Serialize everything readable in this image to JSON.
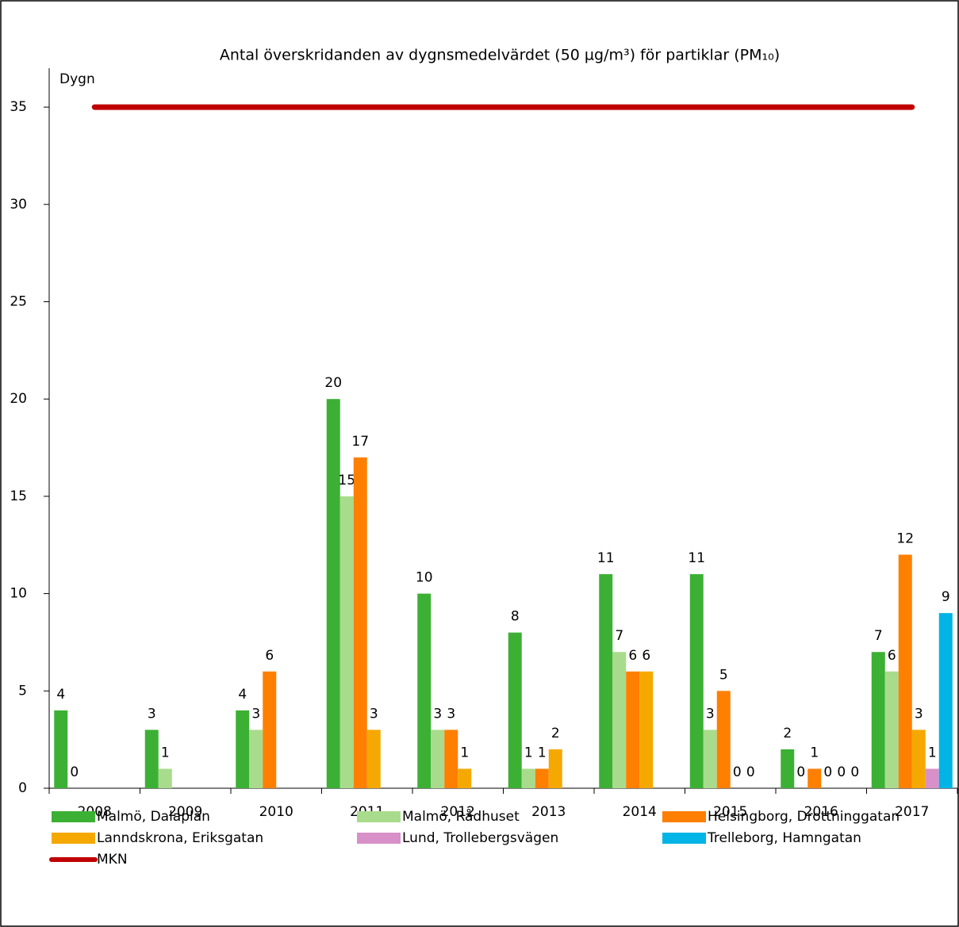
{
  "chart_data": {
    "type": "bar",
    "title": "Antal överskridanden av dygnsmedelvärdet (50 µg/m³) för partiklar (PM₁₀)",
    "y_label": "Dygn",
    "categories": [
      "2008",
      "2009",
      "2010",
      "2011",
      "2012",
      "2013",
      "2014",
      "2015",
      "2016",
      "2017"
    ],
    "series": [
      {
        "name": "Malmö, Dalaplan",
        "color": "#3cb034",
        "values": [
          4,
          3,
          4,
          20,
          10,
          8,
          11,
          11,
          2,
          7
        ]
      },
      {
        "name": "Malmö, Rådhuset",
        "color": "#a8dc8c",
        "values": [
          0,
          1,
          3,
          15,
          3,
          1,
          7,
          3,
          0,
          6
        ]
      },
      {
        "name": "Helsingborg, Drottninggatan",
        "color": "#ff7f00",
        "values": [
          null,
          null,
          6,
          17,
          3,
          1,
          6,
          5,
          1,
          12
        ]
      },
      {
        "name": "Lanndskrona, Eriksgatan",
        "color": "#f5a800",
        "values": [
          null,
          null,
          null,
          3,
          1,
          2,
          6,
          0,
          0,
          3
        ]
      },
      {
        "name": "Lund, Trollebergsvägen",
        "color": "#d890c8",
        "values": [
          null,
          null,
          null,
          null,
          null,
          null,
          null,
          0,
          0,
          1
        ]
      },
      {
        "name": "Trelleborg, Hamngatan",
        "color": "#00b4e6",
        "values": [
          null,
          null,
          null,
          null,
          null,
          null,
          null,
          null,
          0,
          9
        ]
      },
      {
        "name": "MKN",
        "color": "#c00000",
        "type": "line",
        "values": [
          35,
          35,
          35,
          35,
          35,
          35,
          35,
          35,
          35,
          35
        ]
      }
    ],
    "ylim": [
      0,
      37
    ],
    "yticks": [
      0,
      5,
      10,
      15,
      20,
      25,
      30,
      35
    ],
    "grid": false
  }
}
